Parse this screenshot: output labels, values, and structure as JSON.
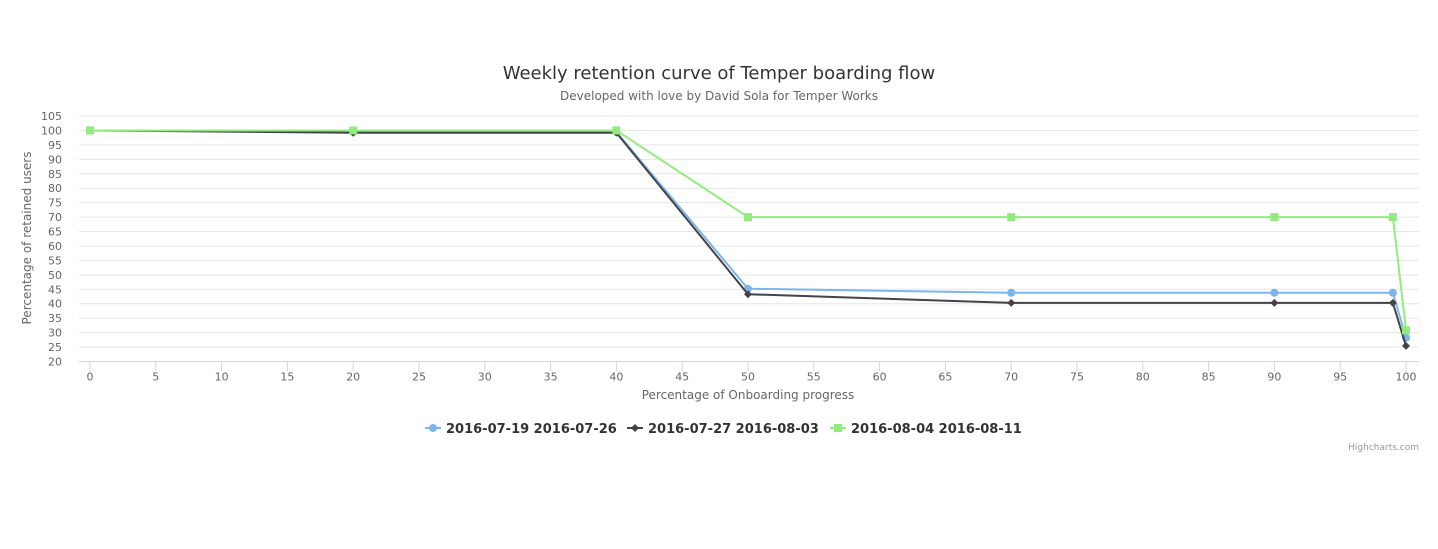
{
  "chart_data": {
    "type": "line",
    "title": "Weekly retention curve of Temper boarding flow",
    "subtitle": "Developed with love by David Sola for Temper Works",
    "xlabel": "Percentage of Onboarding progress",
    "ylabel": "Percentage of retained users",
    "xlim": [
      0,
      100
    ],
    "ylim": [
      20,
      105
    ],
    "x_ticks": [
      0,
      5,
      10,
      15,
      20,
      25,
      30,
      35,
      40,
      45,
      50,
      55,
      60,
      65,
      70,
      75,
      80,
      85,
      90,
      95,
      100
    ],
    "y_ticks": [
      20,
      25,
      30,
      35,
      40,
      45,
      50,
      55,
      60,
      65,
      70,
      75,
      80,
      85,
      90,
      95,
      100,
      105
    ],
    "grid": "horizontal",
    "legend_position": "bottom-center",
    "credits": "Highcharts.com",
    "series": [
      {
        "name": "2016-07-19 2016-07-26",
        "color": "#7cb5ec",
        "marker": "circle",
        "points": [
          [
            0,
            100
          ],
          [
            20,
            99.5
          ],
          [
            40,
            99.5
          ],
          [
            50,
            45.2
          ],
          [
            70,
            43.8
          ],
          [
            90,
            43.8
          ],
          [
            99,
            43.8
          ],
          [
            100,
            28.2
          ]
        ]
      },
      {
        "name": "2016-07-27 2016-08-03",
        "color": "#434348",
        "marker": "diamond",
        "points": [
          [
            0,
            100
          ],
          [
            20,
            99.2
          ],
          [
            40,
            99.2
          ],
          [
            50,
            43.3
          ],
          [
            70,
            40.3
          ],
          [
            90,
            40.3
          ],
          [
            99,
            40.3
          ],
          [
            100,
            25.4
          ]
        ]
      },
      {
        "name": "2016-08-04 2016-08-11",
        "color": "#90ed7d",
        "marker": "square",
        "points": [
          [
            0,
            100
          ],
          [
            20,
            100
          ],
          [
            40,
            100
          ],
          [
            50,
            70
          ],
          [
            70,
            70
          ],
          [
            90,
            70
          ],
          [
            99,
            70
          ],
          [
            100,
            30.8
          ]
        ]
      }
    ]
  }
}
